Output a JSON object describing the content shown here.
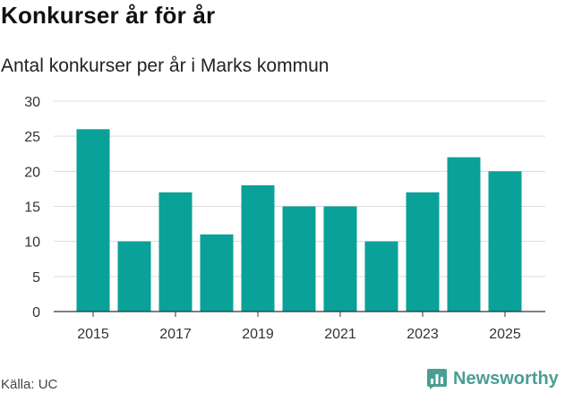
{
  "title": "Konkurser år för år",
  "subtitle": "Antal konkurser per år i Marks kommun",
  "source": "Källa: UC",
  "brand": {
    "name": "Newsworthy",
    "icon": "bar-chart-logo-icon",
    "color": "#4a9e94"
  },
  "colors": {
    "bar": "#0aa198",
    "grid": "#dcdcdc",
    "axis": "#333333"
  },
  "chart_data": {
    "type": "bar",
    "title": "Konkurser år för år",
    "subtitle": "Antal konkurser per år i Marks kommun",
    "xlabel": "",
    "ylabel": "",
    "categories": [
      "2015",
      "2016",
      "2017",
      "2018",
      "2019",
      "2020",
      "2021",
      "2022",
      "2023",
      "2024",
      "2025"
    ],
    "values": [
      26,
      10,
      17,
      11,
      18,
      15,
      15,
      10,
      17,
      22,
      20
    ],
    "x_tick_labels": [
      "2015",
      "2017",
      "2019",
      "2021",
      "2023",
      "2025"
    ],
    "y_ticks": [
      0,
      5,
      10,
      15,
      20,
      25,
      30
    ],
    "ylim": [
      0,
      30
    ],
    "grid": true,
    "legend": "none"
  }
}
